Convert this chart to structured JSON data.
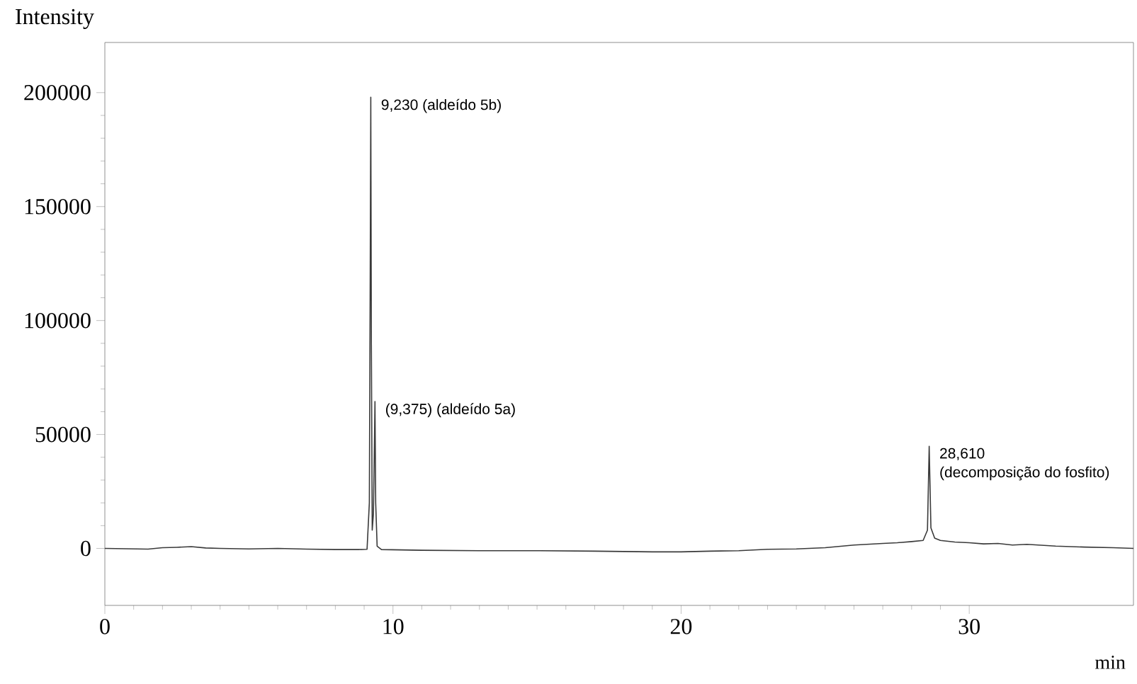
{
  "chart_data": {
    "type": "line",
    "xlabel": "min",
    "ylabel": "Intensity",
    "xlim": [
      0,
      35.7
    ],
    "ylim": [
      -25000,
      222000
    ],
    "xticks": [
      0,
      10,
      20,
      30
    ],
    "yticks": [
      0,
      50000,
      100000,
      150000,
      200000
    ],
    "grid": false,
    "marker": "none",
    "line_style": "solid",
    "series": [
      {
        "color": "#3a3a3a",
        "x": [
          0,
          1.5,
          2,
          2.5,
          3,
          3.5,
          4,
          5,
          6,
          7,
          8,
          8.8,
          9.1,
          9.18,
          9.21,
          9.23,
          9.25,
          9.28,
          9.32,
          9.35,
          9.375,
          9.4,
          9.45,
          9.6,
          11,
          13,
          15,
          17,
          19,
          20,
          21,
          22,
          22.5,
          23,
          24,
          25,
          26,
          27,
          27.5,
          28,
          28.4,
          28.55,
          28.61,
          28.67,
          28.8,
          29,
          29.5,
          30,
          30.5,
          31,
          31.5,
          32,
          33,
          34,
          35,
          35.7
        ],
        "values": [
          0,
          -300,
          300,
          500,
          800,
          200,
          0,
          -200,
          0,
          -300,
          -500,
          -500,
          -400,
          20000,
          120000,
          198000,
          90000,
          8000,
          15000,
          40000,
          64500,
          20000,
          1000,
          -500,
          -800,
          -1000,
          -1000,
          -1200,
          -1500,
          -1500,
          -1200,
          -1000,
          -700,
          -400,
          -200,
          300,
          1500,
          2200,
          2500,
          3000,
          3500,
          8000,
          44800,
          9000,
          4500,
          3500,
          2800,
          2500,
          2000,
          2200,
          1500,
          1800,
          1000,
          600,
          300,
          0
        ]
      }
    ],
    "annotations": [
      {
        "text": "9,230 (aldeído 5b)",
        "x": 9.23,
        "y": 198000
      },
      {
        "text": "(9,375)  (aldeído 5a)",
        "x": 9.375,
        "y": 64500
      },
      {
        "text": "28,610",
        "x": 28.61,
        "y": 44800
      },
      {
        "text": "(decomposição do fosfito)",
        "x": 28.61,
        "y": 44800
      }
    ]
  }
}
